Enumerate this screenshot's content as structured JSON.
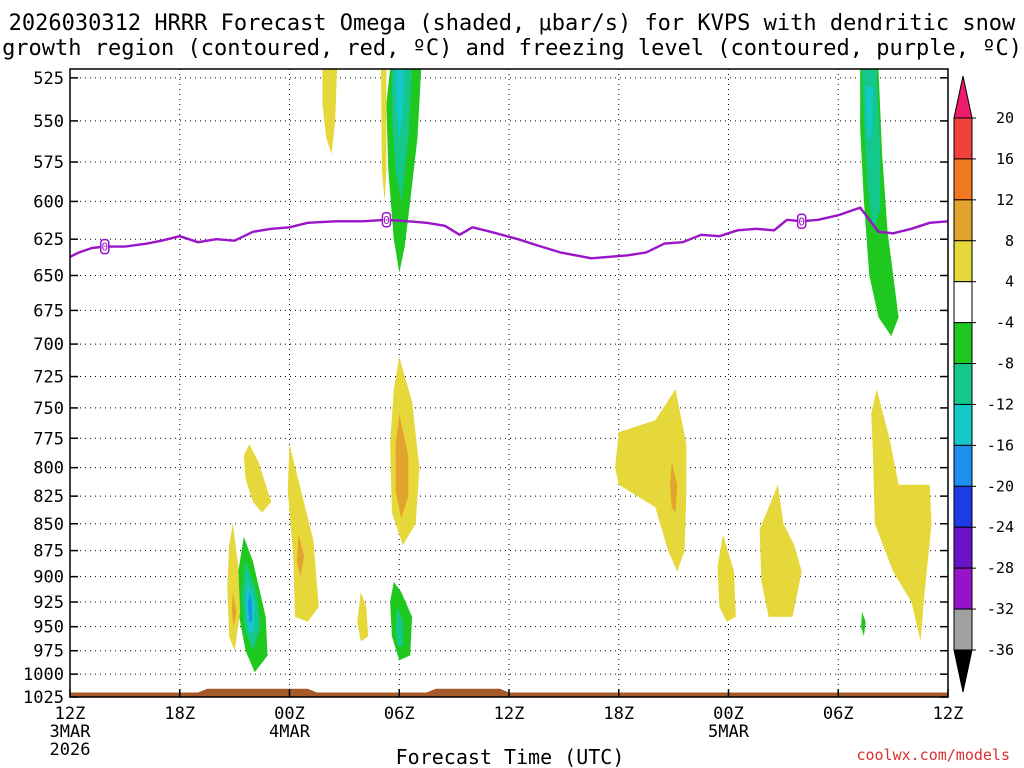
{
  "chart_data": {
    "type": "contour",
    "title_lines": [
      "2026030312 HRRR Forecast Omega (shaded, μbar/s) for KVPS with dendritic snow",
      "growth region (contoured, red, ºC) and freezing level (contoured, purple, ºC)"
    ],
    "xlabel": "Forecast Time (UTC)",
    "credit": "coolwx.com/models",
    "x_hours_range": [
      0,
      48
    ],
    "y_pressure_range": [
      1025,
      520
    ],
    "y_ticks": [
      525,
      550,
      575,
      600,
      625,
      650,
      675,
      700,
      725,
      750,
      775,
      800,
      825,
      850,
      875,
      900,
      925,
      950,
      975,
      1000,
      1025
    ],
    "x_ticks": [
      {
        "hour": 0,
        "label": "12Z",
        "date": "3MAR",
        "year": "2026"
      },
      {
        "hour": 6,
        "label": "18Z",
        "date": "",
        "year": ""
      },
      {
        "hour": 12,
        "label": "00Z",
        "date": "4MAR",
        "year": ""
      },
      {
        "hour": 18,
        "label": "06Z",
        "date": "",
        "year": ""
      },
      {
        "hour": 24,
        "label": "12Z",
        "date": "",
        "year": ""
      },
      {
        "hour": 30,
        "label": "18Z",
        "date": "",
        "year": ""
      },
      {
        "hour": 36,
        "label": "00Z",
        "date": "5MAR",
        "year": ""
      },
      {
        "hour": 42,
        "label": "06Z",
        "date": "",
        "year": ""
      },
      {
        "hour": 48,
        "label": "12Z",
        "date": "",
        "year": ""
      }
    ],
    "colorbar": {
      "labels": [
        "20",
        "16",
        "12",
        "8",
        "4",
        "-4",
        "-8",
        "-12",
        "-16",
        "-20",
        "-24",
        "-28",
        "-32",
        "-36"
      ],
      "colors": [
        "#ee1a6a",
        "#f2403a",
        "#f07820",
        "#e2a42c",
        "#e6d83a",
        "#ffffff",
        "#1ec81e",
        "#14c88c",
        "#14c8c8",
        "#1e90f0",
        "#1e3ce6",
        "#6a14c8",
        "#9614c8",
        "#a0a0a0",
        "#000000"
      ]
    },
    "freezing_level": {
      "label_value": "0",
      "label_hours": [
        1.9,
        17.3,
        40.0
      ],
      "points": [
        [
          0,
          637
        ],
        [
          0.5,
          634
        ],
        [
          1.2,
          631
        ],
        [
          1.9,
          630
        ],
        [
          3.0,
          630
        ],
        [
          4.2,
          628
        ],
        [
          5.0,
          626
        ],
        [
          6.0,
          623
        ],
        [
          7.0,
          627
        ],
        [
          8.0,
          625
        ],
        [
          9.0,
          626
        ],
        [
          10.0,
          620
        ],
        [
          11.0,
          618
        ],
        [
          12.0,
          617
        ],
        [
          13.0,
          614
        ],
        [
          14.5,
          613
        ],
        [
          16.0,
          613
        ],
        [
          17.3,
          612
        ],
        [
          18.5,
          613
        ],
        [
          19.5,
          614
        ],
        [
          20.5,
          616
        ],
        [
          21.3,
          622
        ],
        [
          22.0,
          617
        ],
        [
          23.0,
          620
        ],
        [
          24.5,
          625
        ],
        [
          25.5,
          629
        ],
        [
          26.8,
          634
        ],
        [
          28.5,
          638
        ],
        [
          29.5,
          637
        ],
        [
          30.5,
          636
        ],
        [
          31.5,
          634
        ],
        [
          32.5,
          628
        ],
        [
          33.5,
          627
        ],
        [
          34.5,
          622
        ],
        [
          35.5,
          623
        ],
        [
          36.5,
          619
        ],
        [
          37.5,
          618
        ],
        [
          38.5,
          619
        ],
        [
          39.2,
          612
        ],
        [
          40.0,
          613
        ],
        [
          40.9,
          612
        ],
        [
          42.0,
          609
        ],
        [
          43.2,
          604
        ],
        [
          44.2,
          620
        ],
        [
          45.0,
          621
        ],
        [
          46.0,
          618
        ],
        [
          47.0,
          614
        ],
        [
          48.0,
          613
        ]
      ]
    },
    "omega_regions": [
      {
        "name": "upward-4-to-8",
        "color": "#1ec81e",
        "points": [
          [
            17.5,
            520
          ],
          [
            19.2,
            520
          ],
          [
            19.0,
            560
          ],
          [
            18.6,
            600
          ],
          [
            18.3,
            630
          ],
          [
            18.0,
            648
          ],
          [
            17.7,
            625
          ],
          [
            17.4,
            580
          ],
          [
            17.3,
            540
          ]
        ]
      },
      {
        "name": "upward-8-to-12",
        "color": "#14c88c",
        "points": [
          [
            17.6,
            520
          ],
          [
            18.7,
            520
          ],
          [
            18.5,
            560
          ],
          [
            18.1,
            600
          ],
          [
            17.8,
            580
          ],
          [
            17.6,
            545
          ]
        ]
      },
      {
        "name": "upward-12-to-16",
        "color": "#14c8c8",
        "points": [
          [
            17.8,
            520
          ],
          [
            18.3,
            520
          ],
          [
            18.2,
            548
          ],
          [
            18.0,
            560
          ],
          [
            17.85,
            545
          ]
        ]
      },
      {
        "name": "upward-4-to-8",
        "color": "#1ec81e",
        "points": [
          [
            43.2,
            520
          ],
          [
            44.2,
            520
          ],
          [
            44.4,
            570
          ],
          [
            44.7,
            620
          ],
          [
            45.3,
            680
          ],
          [
            44.9,
            694
          ],
          [
            44.2,
            680
          ],
          [
            43.7,
            650
          ],
          [
            43.4,
            600
          ],
          [
            43.2,
            555
          ]
        ]
      },
      {
        "name": "upward-8-to-12",
        "color": "#14c88c",
        "points": [
          [
            43.3,
            520
          ],
          [
            44.1,
            520
          ],
          [
            44.3,
            570
          ],
          [
            44.3,
            605
          ],
          [
            43.9,
            620
          ],
          [
            43.6,
            590
          ],
          [
            43.4,
            550
          ]
        ]
      },
      {
        "name": "upward-12-to-16",
        "color": "#14c8c8",
        "points": [
          [
            43.5,
            530
          ],
          [
            43.9,
            530
          ],
          [
            43.8,
            560
          ],
          [
            43.6,
            560
          ]
        ]
      },
      {
        "name": "upward-4-to-8",
        "color": "#1ec81e",
        "points": [
          [
            9.5,
            862
          ],
          [
            10.0,
            885
          ],
          [
            10.7,
            940
          ],
          [
            10.8,
            980
          ],
          [
            10.1,
            998
          ],
          [
            9.6,
            975
          ],
          [
            9.2,
            935
          ],
          [
            9.2,
            895
          ]
        ]
      },
      {
        "name": "upward-8-to-12",
        "color": "#14c88c",
        "points": [
          [
            9.6,
            885
          ],
          [
            10.2,
            915
          ],
          [
            10.4,
            950
          ],
          [
            10.0,
            975
          ],
          [
            9.6,
            955
          ],
          [
            9.4,
            920
          ]
        ]
      },
      {
        "name": "upward-12-to-16",
        "color": "#14c8c8",
        "points": [
          [
            9.7,
            905
          ],
          [
            10.1,
            925
          ],
          [
            10.1,
            955
          ],
          [
            9.75,
            955
          ],
          [
            9.6,
            925
          ]
        ]
      },
      {
        "name": "upward-16-to-20",
        "color": "#1e90f0",
        "points": [
          [
            9.8,
            915
          ],
          [
            9.95,
            925
          ],
          [
            9.95,
            945
          ],
          [
            9.8,
            945
          ],
          [
            9.72,
            930
          ]
        ]
      },
      {
        "name": "upward-4-to-8",
        "color": "#1ec81e",
        "points": [
          [
            17.7,
            905
          ],
          [
            18.1,
            915
          ],
          [
            18.7,
            940
          ],
          [
            18.6,
            980
          ],
          [
            18.0,
            985
          ],
          [
            17.6,
            960
          ],
          [
            17.5,
            925
          ]
        ]
      },
      {
        "name": "upward-8-to-12",
        "color": "#14c88c",
        "points": [
          [
            17.9,
            930
          ],
          [
            18.2,
            945
          ],
          [
            18.2,
            970
          ],
          [
            17.9,
            970
          ],
          [
            17.8,
            950
          ]
        ]
      },
      {
        "name": "upward-4-to-8",
        "color": "#1ec81e",
        "points": [
          [
            43.3,
            935
          ],
          [
            43.5,
            945
          ],
          [
            43.4,
            960
          ],
          [
            43.25,
            950
          ]
        ]
      },
      {
        "name": "downward-4-to-8",
        "color": "#e6d83a",
        "points": [
          [
            13.8,
            520
          ],
          [
            14.6,
            520
          ],
          [
            14.5,
            550
          ],
          [
            14.3,
            570
          ],
          [
            14.0,
            560
          ],
          [
            13.8,
            540
          ]
        ]
      },
      {
        "name": "downward-4-to-8",
        "color": "#e6d83a",
        "points": [
          [
            17.0,
            520
          ],
          [
            17.3,
            520
          ],
          [
            17.3,
            580
          ],
          [
            17.2,
            600
          ],
          [
            17.05,
            580
          ]
        ]
      },
      {
        "name": "downward-4-to-8",
        "color": "#e6d83a",
        "points": [
          [
            18.0,
            710
          ],
          [
            18.7,
            745
          ],
          [
            19.1,
            800
          ],
          [
            18.9,
            850
          ],
          [
            18.2,
            870
          ],
          [
            17.6,
            840
          ],
          [
            17.5,
            780
          ],
          [
            17.7,
            735
          ]
        ]
      },
      {
        "name": "downward-8-to-12",
        "color": "#e2a42c",
        "points": [
          [
            18.0,
            755
          ],
          [
            18.5,
            790
          ],
          [
            18.5,
            825
          ],
          [
            18.1,
            845
          ],
          [
            17.8,
            820
          ],
          [
            17.8,
            780
          ]
        ]
      },
      {
        "name": "downward-4-to-8",
        "color": "#e6d83a",
        "points": [
          [
            9.8,
            780
          ],
          [
            10.3,
            795
          ],
          [
            11.0,
            830
          ],
          [
            10.5,
            840
          ],
          [
            10.0,
            830
          ],
          [
            9.6,
            810
          ],
          [
            9.5,
            790
          ]
        ]
      },
      {
        "name": "downward-4-to-8",
        "color": "#e6d83a",
        "points": [
          [
            12.0,
            780
          ],
          [
            13.3,
            865
          ],
          [
            13.6,
            930
          ],
          [
            13.0,
            945
          ],
          [
            12.3,
            940
          ],
          [
            12.2,
            880
          ],
          [
            11.9,
            820
          ]
        ]
      },
      {
        "name": "downward-8-to-12",
        "color": "#e2a42c",
        "points": [
          [
            12.5,
            860
          ],
          [
            12.8,
            880
          ],
          [
            12.6,
            900
          ],
          [
            12.4,
            885
          ]
        ]
      },
      {
        "name": "downward-4-to-8",
        "color": "#e6d83a",
        "points": [
          [
            8.9,
            850
          ],
          [
            9.2,
            890
          ],
          [
            9.3,
            935
          ],
          [
            9.0,
            975
          ],
          [
            8.7,
            960
          ],
          [
            8.6,
            910
          ],
          [
            8.7,
            870
          ]
        ]
      },
      {
        "name": "downward-8-to-12",
        "color": "#e2a42c",
        "points": [
          [
            8.9,
            915
          ],
          [
            9.1,
            935
          ],
          [
            8.95,
            950
          ],
          [
            8.85,
            935
          ]
        ]
      },
      {
        "name": "downward-4-to-8",
        "color": "#e6d83a",
        "points": [
          [
            15.9,
            915
          ],
          [
            16.2,
            930
          ],
          [
            16.3,
            960
          ],
          [
            15.9,
            965
          ],
          [
            15.7,
            945
          ]
        ]
      },
      {
        "name": "downward-4-to-8",
        "color": "#e6d83a",
        "points": [
          [
            30.0,
            770
          ],
          [
            32.0,
            760
          ],
          [
            33.1,
            735
          ],
          [
            33.7,
            780
          ],
          [
            33.7,
            820
          ],
          [
            33.6,
            875
          ],
          [
            33.2,
            895
          ],
          [
            32.7,
            875
          ],
          [
            32.0,
            835
          ],
          [
            30.0,
            815
          ],
          [
            29.8,
            800
          ]
        ]
      },
      {
        "name": "downward-8-to-12",
        "color": "#e2a42c",
        "points": [
          [
            32.9,
            795
          ],
          [
            33.2,
            815
          ],
          [
            33.1,
            840
          ],
          [
            32.9,
            835
          ],
          [
            32.8,
            815
          ]
        ]
      },
      {
        "name": "downward-4-to-8",
        "color": "#e6d83a",
        "points": [
          [
            35.7,
            860
          ],
          [
            36.3,
            895
          ],
          [
            36.4,
            940
          ],
          [
            35.9,
            945
          ],
          [
            35.5,
            930
          ],
          [
            35.4,
            890
          ]
        ]
      },
      {
        "name": "downward-4-to-8",
        "color": "#e6d83a",
        "points": [
          [
            38.7,
            815
          ],
          [
            39.0,
            850
          ],
          [
            39.6,
            870
          ],
          [
            40.0,
            895
          ],
          [
            39.5,
            940
          ],
          [
            38.2,
            940
          ],
          [
            37.8,
            905
          ],
          [
            37.7,
            855
          ],
          [
            38.2,
            835
          ]
        ]
      },
      {
        "name": "downward-4-to-8",
        "color": "#e6d83a",
        "points": [
          [
            44.1,
            735
          ],
          [
            44.8,
            775
          ],
          [
            45.3,
            815
          ],
          [
            47.0,
            815
          ],
          [
            47.1,
            850
          ],
          [
            46.7,
            920
          ],
          [
            46.5,
            965
          ],
          [
            46.0,
            925
          ],
          [
            45.0,
            895
          ],
          [
            44.0,
            850
          ],
          [
            43.9,
            790
          ],
          [
            43.8,
            755
          ]
        ]
      }
    ],
    "terrain": {
      "color": "#a65a2a",
      "points": [
        [
          0,
          1020
        ],
        [
          7.0,
          1020
        ],
        [
          7.5,
          1016
        ],
        [
          13.0,
          1016
        ],
        [
          13.5,
          1020
        ],
        [
          19.5,
          1020
        ],
        [
          20.0,
          1016
        ],
        [
          23.5,
          1016
        ],
        [
          24.0,
          1020
        ],
        [
          48.0,
          1020
        ],
        [
          48.0,
          1032
        ],
        [
          0,
          1032
        ]
      ]
    }
  }
}
